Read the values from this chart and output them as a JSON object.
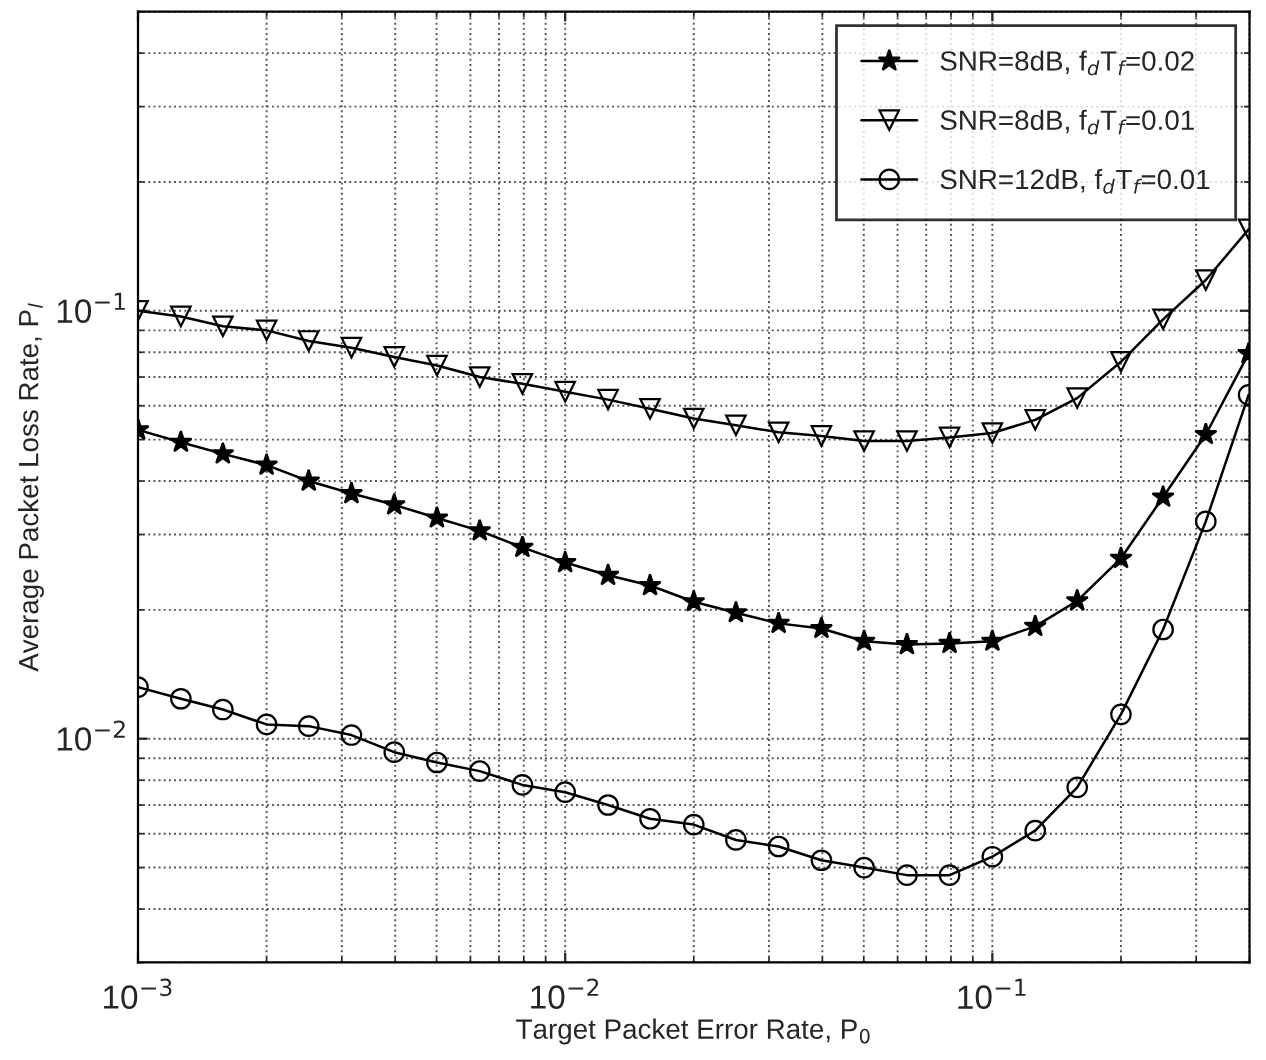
{
  "chart_data": {
    "type": "line",
    "xlabel": "Target Packet Error Rate, P$_{0}$",
    "ylabel": "Average Packet Loss Rate, P$_{l}$",
    "x": [
      0.001,
      0.00126,
      0.00158,
      0.002,
      0.00251,
      0.00316,
      0.00398,
      0.00501,
      0.00631,
      0.00794,
      0.01,
      0.0126,
      0.0158,
      0.02,
      0.0251,
      0.0316,
      0.0398,
      0.0501,
      0.0631,
      0.0794,
      0.1,
      0.126,
      0.158,
      0.2,
      0.251,
      0.316,
      0.398
    ],
    "series": [
      {
        "name": "SNR=8dB, f$_{d}$T$_{f}$=0.02",
        "color": "#000000",
        "marker": "star",
        "values": [
          0.0527,
          0.0493,
          0.0463,
          0.0436,
          0.04,
          0.0374,
          0.0352,
          0.0328,
          0.0306,
          0.028,
          0.0258,
          0.0241,
          0.0228,
          0.0209,
          0.0197,
          0.0186,
          0.0181,
          0.0169,
          0.0166,
          0.0167,
          0.0169,
          0.0183,
          0.021,
          0.0264,
          0.0367,
          0.0514,
          0.0794
        ]
      },
      {
        "name": "SNR=8dB, f$_{d}$T$_{f}$=0.01",
        "color": "#000000",
        "marker": "triangle",
        "values": [
          0.1,
          0.097,
          0.092,
          0.09,
          0.085,
          0.082,
          0.078,
          0.0745,
          0.07,
          0.0675,
          0.0647,
          0.062,
          0.059,
          0.056,
          0.054,
          0.052,
          0.051,
          0.0496,
          0.0496,
          0.0506,
          0.0518,
          0.0556,
          0.0625,
          0.076,
          0.0955,
          0.118,
          0.155
        ]
      },
      {
        "name": "SNR=12dB, f$_{d}$T$_{f}$=0.01",
        "color": "#000000",
        "marker": "circle",
        "values": [
          0.0132,
          0.0124,
          0.0117,
          0.0108,
          0.0107,
          0.0102,
          0.0093,
          0.0088,
          0.0084,
          0.0078,
          0.0075,
          0.007,
          0.0065,
          0.0063,
          0.0058,
          0.0056,
          0.0052,
          0.005,
          0.0048,
          0.0048,
          0.0053,
          0.0061,
          0.0077,
          0.0114,
          0.018,
          0.0322,
          0.0636
        ]
      }
    ],
    "log": "xy",
    "xlim": [
      0.001,
      0.4
    ],
    "ylim": [
      0.003,
      0.5
    ],
    "xticks": [
      {
        "value": 0.001,
        "label": "10$^{−3}$"
      },
      {
        "value": 0.01,
        "label": "10$^{−2}$"
      },
      {
        "value": 0.1,
        "label": "10$^{−1}$"
      }
    ],
    "yticks": [
      {
        "value": 0.01,
        "label": "10$^{−2}$"
      },
      {
        "value": 0.1,
        "label": "10$^{−1}$"
      }
    ],
    "grid": true,
    "legend": "top right",
    "line_style": "solid"
  }
}
